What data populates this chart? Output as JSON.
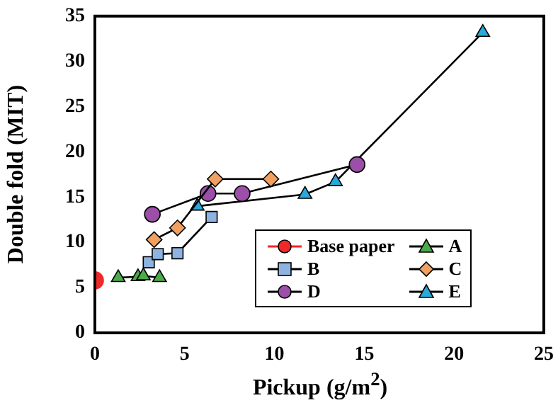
{
  "chart_data": {
    "type": "line",
    "xlabel": "Pickup (g/m$^{2}$)",
    "ylabel": "Double fold (MIT)",
    "xlim": [
      0,
      25
    ],
    "xticks": [
      0,
      5,
      10,
      15,
      20,
      25
    ],
    "ylim": [
      0,
      35
    ],
    "yticks": [
      0,
      5,
      10,
      15,
      20,
      25,
      30,
      35
    ],
    "grid": false,
    "legend": "bottom right",
    "line_style": "solid",
    "series": [
      {
        "name": "Base paper",
        "color": "#f02828",
        "marker": "circle",
        "x": [
          0
        ],
        "values": [
          5.8
        ]
      },
      {
        "name": "A",
        "color": "#4caa4c",
        "marker": "triangle",
        "x": [
          1.3,
          2.4,
          2.7,
          3.6
        ],
        "values": [
          6.1,
          6.2,
          6.3,
          6.1
        ]
      },
      {
        "name": "B",
        "color": "#8fb3e0",
        "marker": "square",
        "x": [
          3.0,
          3.5,
          4.6,
          6.5
        ],
        "values": [
          7.8,
          8.7,
          8.8,
          12.8
        ]
      },
      {
        "name": "C",
        "color": "#f0a060",
        "marker": "diamond",
        "x": [
          3.3,
          4.6,
          6.7,
          9.8
        ],
        "values": [
          10.3,
          11.6,
          17.0,
          17.0
        ]
      },
      {
        "name": "D",
        "color": "#9b4fa8",
        "marker": "circle",
        "x": [
          3.2,
          6.3,
          8.2,
          14.6
        ],
        "values": [
          13.1,
          15.4,
          15.4,
          18.6
        ]
      },
      {
        "name": "E",
        "color": "#2aa8d8",
        "marker": "triangle",
        "x": [
          5.7,
          11.7,
          13.4,
          21.6
        ],
        "values": [
          14.0,
          15.3,
          16.7,
          33.2
        ]
      }
    ]
  }
}
